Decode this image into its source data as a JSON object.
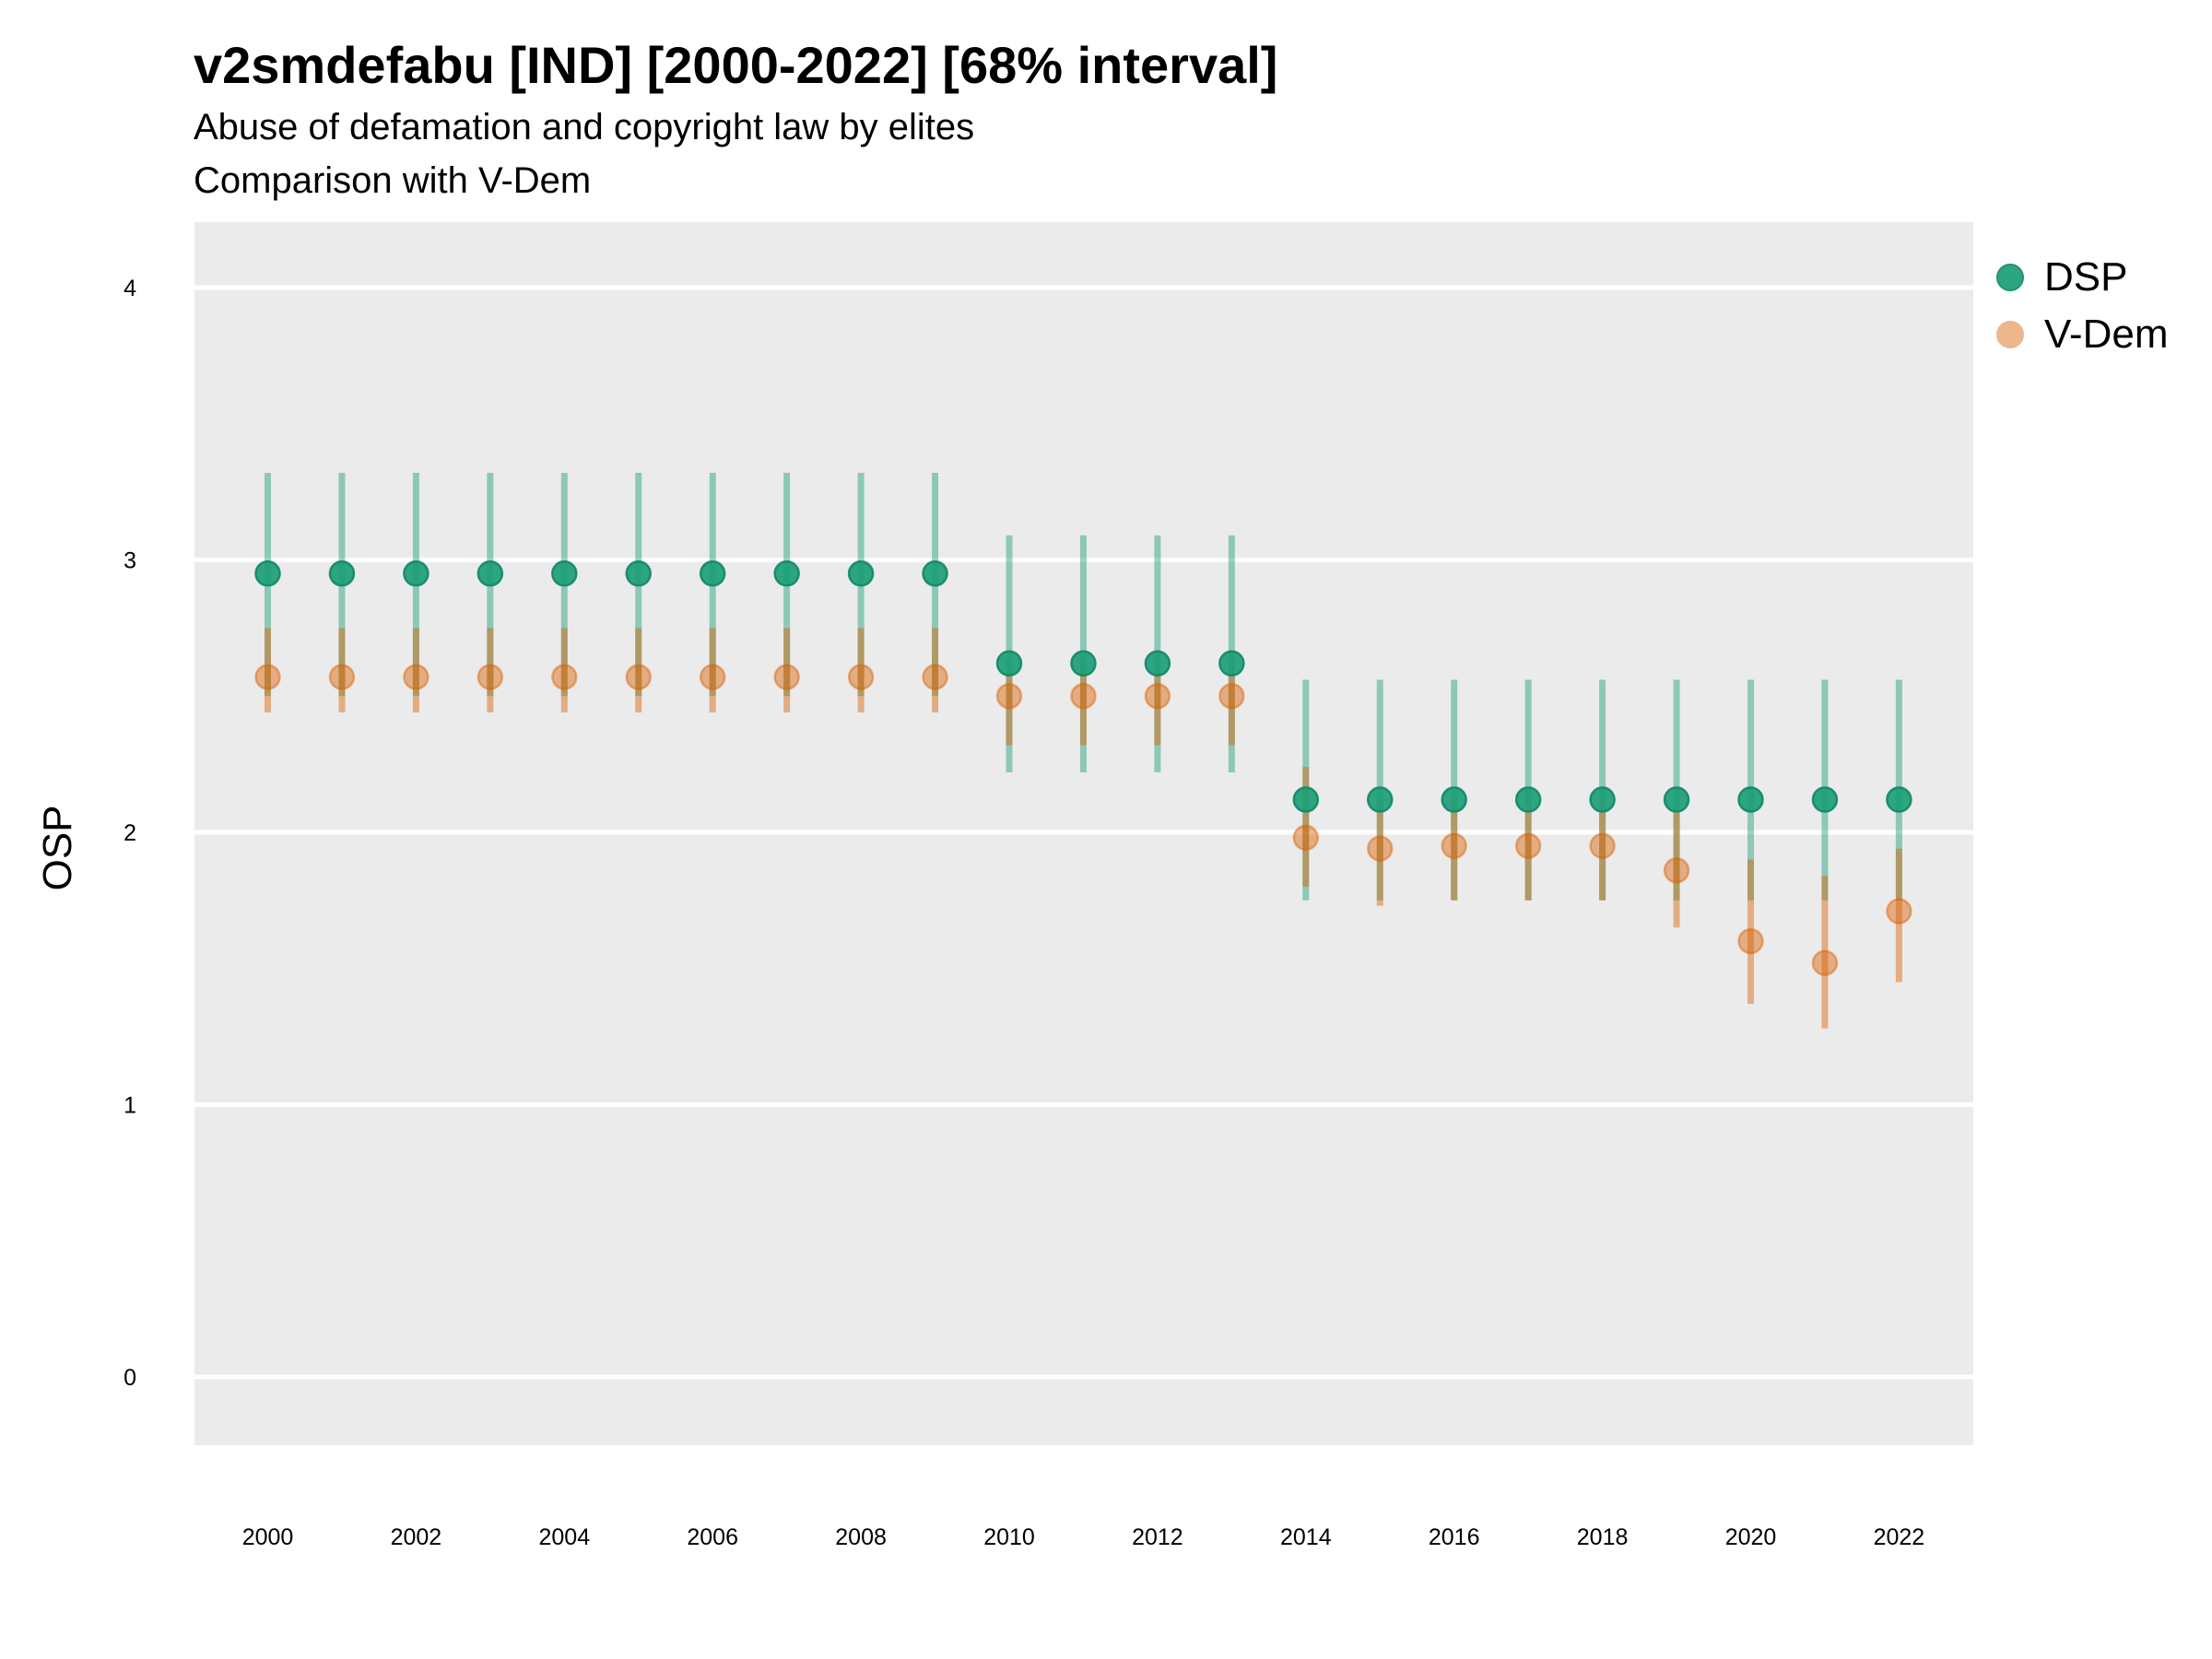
{
  "chart_data": {
    "type": "scatter",
    "title": "v2smdefabu [IND] [2000-2022] [68% interval]",
    "subtitle": "Abuse of defamation and copyright law by elites",
    "subtitle2": "Comparison with V-Dem",
    "xlabel": "",
    "ylabel": "OSP",
    "xlim": [
      1999,
      2023
    ],
    "ylim": [
      -0.25,
      4.25
    ],
    "xticks": [
      2000,
      2002,
      2004,
      2006,
      2008,
      2010,
      2012,
      2014,
      2016,
      2018,
      2020,
      2022
    ],
    "yticks": [
      0,
      1,
      2,
      3,
      4
    ],
    "grid": true,
    "legend_position": "right",
    "x": [
      2000,
      2001,
      2002,
      2003,
      2004,
      2005,
      2006,
      2007,
      2008,
      2009,
      2010,
      2011,
      2012,
      2013,
      2014,
      2015,
      2016,
      2017,
      2018,
      2019,
      2020,
      2021,
      2022
    ],
    "series": [
      {
        "name": "DSP",
        "color": "#1b9e77",
        "values": [
          2.95,
          2.95,
          2.95,
          2.95,
          2.95,
          2.95,
          2.95,
          2.95,
          2.95,
          2.95,
          2.62,
          2.62,
          2.62,
          2.62,
          2.12,
          2.12,
          2.12,
          2.12,
          2.12,
          2.12,
          2.12,
          2.12,
          2.12
        ],
        "lower": [
          2.5,
          2.5,
          2.5,
          2.5,
          2.5,
          2.5,
          2.5,
          2.5,
          2.5,
          2.5,
          2.22,
          2.22,
          2.22,
          2.22,
          1.75,
          1.75,
          1.75,
          1.75,
          1.75,
          1.75,
          1.75,
          1.75,
          1.75
        ],
        "upper": [
          3.32,
          3.32,
          3.32,
          3.32,
          3.32,
          3.32,
          3.32,
          3.32,
          3.32,
          3.32,
          3.09,
          3.09,
          3.09,
          3.09,
          2.56,
          2.56,
          2.56,
          2.56,
          2.56,
          2.56,
          2.56,
          2.56,
          2.56
        ]
      },
      {
        "name": "V-Dem",
        "color": "#d95f02",
        "values": [
          2.57,
          2.57,
          2.57,
          2.57,
          2.57,
          2.57,
          2.57,
          2.57,
          2.57,
          2.57,
          2.5,
          2.5,
          2.5,
          2.5,
          1.98,
          1.94,
          1.95,
          1.95,
          1.95,
          1.86,
          1.6,
          1.52,
          1.71
        ],
        "lower": [
          2.44,
          2.44,
          2.44,
          2.44,
          2.44,
          2.44,
          2.44,
          2.44,
          2.44,
          2.44,
          2.32,
          2.32,
          2.32,
          2.32,
          1.8,
          1.73,
          1.75,
          1.75,
          1.75,
          1.65,
          1.37,
          1.28,
          1.45
        ],
        "upper": [
          2.75,
          2.75,
          2.75,
          2.75,
          2.75,
          2.75,
          2.75,
          2.75,
          2.75,
          2.75,
          2.62,
          2.62,
          2.62,
          2.62,
          2.24,
          2.12,
          2.12,
          2.12,
          2.12,
          2.08,
          1.9,
          1.84,
          1.94
        ]
      }
    ]
  }
}
